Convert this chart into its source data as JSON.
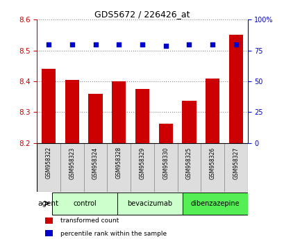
{
  "title": "GDS5672 / 226426_at",
  "samples": [
    "GSM958322",
    "GSM958323",
    "GSM958324",
    "GSM958328",
    "GSM958329",
    "GSM958330",
    "GSM958325",
    "GSM958326",
    "GSM958327"
  ],
  "transformed_counts": [
    8.44,
    8.405,
    8.36,
    8.4,
    8.375,
    8.262,
    8.337,
    8.41,
    8.55
  ],
  "percentile_ranks": [
    80,
    80,
    80,
    80,
    80,
    79,
    80,
    80,
    80
  ],
  "ylim": [
    8.2,
    8.6
  ],
  "yticks_left": [
    8.2,
    8.3,
    8.4,
    8.5,
    8.6
  ],
  "yticks_right": [
    0,
    25,
    50,
    75,
    100
  ],
  "bar_color": "#cc0000",
  "dot_color": "#0000cc",
  "bar_bottom": 8.2,
  "groups": [
    {
      "label": "control",
      "indices": [
        0,
        1,
        2
      ],
      "color": "#ccffcc"
    },
    {
      "label": "bevacizumab",
      "indices": [
        3,
        4,
        5
      ],
      "color": "#ccffcc"
    },
    {
      "label": "dibenzazepine",
      "indices": [
        6,
        7,
        8
      ],
      "color": "#55ee55"
    }
  ],
  "legend_items": [
    {
      "label": "transformed count",
      "color": "#cc0000"
    },
    {
      "label": "percentile rank within the sample",
      "color": "#0000cc"
    }
  ],
  "agent_label": "agent",
  "bg_color": "#ffffff",
  "sample_box_color": "#dddddd",
  "grid_color": "#888888",
  "tick_label_color_left": "#cc0000",
  "tick_label_color_right": "#0000cc"
}
